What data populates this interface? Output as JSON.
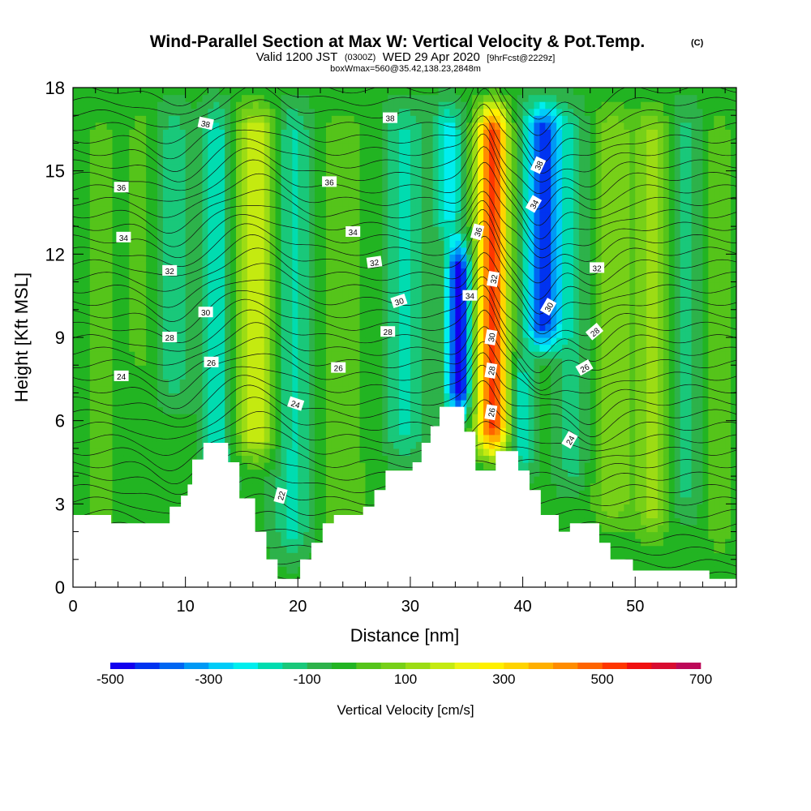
{
  "chart_data": {
    "type": "heatmap",
    "title": {
      "main": "Wind-Parallel Section at Max W: Vertical Velocity & Pot.Temp.",
      "copyright": "(C)",
      "valid_prefix": "Valid 1200 JST",
      "utc": "(0300Z)",
      "valid_date": "WED 29 Apr 2020",
      "forecast": "[9hrFcst@2229z]",
      "box_info": "boxWmax=560@35.42,138.23,2848m"
    },
    "xlabel": "Distance [nm]",
    "ylabel": "Height [Kft MSL]",
    "xlim": [
      0,
      59
    ],
    "ylim": [
      0,
      18
    ],
    "x_ticks": [
      0,
      10,
      20,
      30,
      40,
      50
    ],
    "y_ticks": [
      0,
      3,
      6,
      9,
      12,
      15,
      18
    ],
    "colorbar": {
      "label": "Vertical Velocity [cm/s]",
      "range": [
        -500,
        700
      ],
      "step": 50,
      "tick_labels": [
        -500,
        -300,
        -100,
        100,
        300,
        500,
        700
      ],
      "colors": [
        "#1100ee",
        "#0033f0",
        "#0066f2",
        "#0099f5",
        "#00ccf8",
        "#00eeee",
        "#00dcb0",
        "#19c87a",
        "#2db24a",
        "#22b422",
        "#55c41a",
        "#77d018",
        "#9cdc14",
        "#c4ea10",
        "#eef410",
        "#fff000",
        "#ffd400",
        "#ffb000",
        "#ff8c00",
        "#ff6400",
        "#ff3600",
        "#f01010",
        "#d80c30",
        "#bc0858",
        "#a00a80",
        "#7a0a99"
      ]
    },
    "velocity_field": {
      "background": -40,
      "features": [
        {
          "x": 2.5,
          "w": 1.4,
          "sign": 1,
          "amp": 55,
          "z0": 0.5,
          "z1": 18
        },
        {
          "x": 6.0,
          "w": 1.2,
          "sign": 1,
          "amp": 60,
          "z0": 7,
          "z1": 18
        },
        {
          "x": 9.0,
          "w": 1.3,
          "sign": -1,
          "amp": 90,
          "z0": 6,
          "z1": 18
        },
        {
          "x": 12.8,
          "w": 1.2,
          "sign": -1,
          "amp": 150,
          "z0": 2,
          "z1": 18
        },
        {
          "x": 16.3,
          "w": 1.8,
          "sign": 1,
          "amp": 230,
          "z0": 4,
          "z1": 18
        },
        {
          "x": 19.6,
          "w": 1.6,
          "sign": -1,
          "amp": 130,
          "z0": 0.5,
          "z1": 18
        },
        {
          "x": 24.0,
          "w": 2.8,
          "sign": 1,
          "amp": 60,
          "z0": 0.5,
          "z1": 18
        },
        {
          "x": 29.5,
          "w": 1.8,
          "sign": -1,
          "amp": 120,
          "z0": 4,
          "z1": 18
        },
        {
          "x": 34.3,
          "w": 1.0,
          "sign": -1,
          "amp": 480,
          "z0": 5.6,
          "z1": 13
        },
        {
          "x": 33.4,
          "w": 1.2,
          "sign": -1,
          "amp": 200,
          "z0": 12,
          "z1": 18
        },
        {
          "x": 37.3,
          "w": 1.4,
          "sign": 1,
          "amp": 560,
          "z0": 4.2,
          "z1": 18
        },
        {
          "x": 40.0,
          "w": 1.0,
          "sign": -1,
          "amp": 160,
          "z0": 3.5,
          "z1": 9
        },
        {
          "x": 41.8,
          "w": 1.6,
          "sign": -1,
          "amp": 400,
          "z0": 8,
          "z1": 18
        },
        {
          "x": 44.5,
          "w": 1.4,
          "sign": -1,
          "amp": 90,
          "z0": 3,
          "z1": 18
        },
        {
          "x": 48.0,
          "w": 1.8,
          "sign": 1,
          "amp": 130,
          "z0": 1.5,
          "z1": 18
        },
        {
          "x": 51.5,
          "w": 1.4,
          "sign": 1,
          "amp": 150,
          "z0": 1,
          "z1": 18
        },
        {
          "x": 54.5,
          "w": 1.2,
          "sign": -1,
          "amp": 80,
          "z0": 2,
          "z1": 18
        },
        {
          "x": 57.5,
          "w": 1.3,
          "sign": 1,
          "amp": 60,
          "z0": 0.3,
          "z1": 18
        }
      ]
    },
    "terrain_profile": [
      [
        0,
        2.6
      ],
      [
        3.4,
        2.6
      ],
      [
        3.4,
        2.3
      ],
      [
        8.6,
        2.3
      ],
      [
        8.6,
        2.9
      ],
      [
        9.6,
        2.9
      ],
      [
        9.6,
        3.3
      ],
      [
        10.2,
        3.3
      ],
      [
        10.2,
        3.7
      ],
      [
        10.6,
        3.7
      ],
      [
        10.6,
        4.6
      ],
      [
        11.6,
        4.6
      ],
      [
        11.6,
        5.2
      ],
      [
        13.8,
        5.2
      ],
      [
        13.8,
        4.5
      ],
      [
        14.8,
        4.5
      ],
      [
        14.8,
        3.2
      ],
      [
        16.2,
        3.2
      ],
      [
        16.2,
        2.0
      ],
      [
        17.2,
        2.0
      ],
      [
        17.2,
        1.0
      ],
      [
        18.2,
        1.0
      ],
      [
        18.2,
        0.3
      ],
      [
        20.2,
        0.3
      ],
      [
        20.2,
        1.0
      ],
      [
        21.2,
        1.0
      ],
      [
        21.2,
        1.6
      ],
      [
        22.2,
        1.6
      ],
      [
        22.2,
        2.3
      ],
      [
        23.2,
        2.3
      ],
      [
        23.2,
        2.6
      ],
      [
        25.8,
        2.6
      ],
      [
        25.8,
        2.9
      ],
      [
        26.8,
        2.9
      ],
      [
        26.8,
        3.5
      ],
      [
        27.8,
        3.5
      ],
      [
        27.8,
        4.2
      ],
      [
        30.2,
        4.2
      ],
      [
        30.2,
        4.5
      ],
      [
        31.0,
        4.5
      ],
      [
        31.0,
        5.2
      ],
      [
        31.8,
        5.2
      ],
      [
        31.8,
        5.8
      ],
      [
        32.6,
        5.8
      ],
      [
        32.6,
        6.5
      ],
      [
        34.8,
        6.5
      ],
      [
        34.8,
        5.6
      ],
      [
        35.8,
        5.6
      ],
      [
        35.8,
        4.2
      ],
      [
        37.6,
        4.2
      ],
      [
        37.6,
        4.9
      ],
      [
        39.6,
        4.9
      ],
      [
        39.6,
        4.2
      ],
      [
        40.6,
        4.2
      ],
      [
        40.6,
        3.5
      ],
      [
        41.6,
        3.5
      ],
      [
        41.6,
        2.6
      ],
      [
        43.2,
        2.6
      ],
      [
        43.2,
        2.0
      ],
      [
        44.2,
        2.0
      ],
      [
        44.2,
        2.3
      ],
      [
        46.8,
        2.3
      ],
      [
        46.8,
        1.6
      ],
      [
        47.8,
        1.6
      ],
      [
        47.8,
        1.0
      ],
      [
        49.8,
        1.0
      ],
      [
        49.8,
        0.6
      ],
      [
        56.6,
        0.6
      ],
      [
        56.6,
        0.3
      ],
      [
        59,
        0.3
      ]
    ],
    "potential_temperature": {
      "labels": [
        {
          "text": "38",
          "x": 11.8,
          "y": 16.7,
          "angle": 12
        },
        {
          "text": "38",
          "x": 28.2,
          "y": 16.9,
          "angle": 0
        },
        {
          "text": "36",
          "x": 4.3,
          "y": 14.4,
          "angle": 0
        },
        {
          "text": "36",
          "x": 22.8,
          "y": 14.6,
          "angle": 0
        },
        {
          "text": "34",
          "x": 4.5,
          "y": 12.6,
          "angle": 0
        },
        {
          "text": "34",
          "x": 24.9,
          "y": 12.8,
          "angle": 0
        },
        {
          "text": "32",
          "x": 8.6,
          "y": 11.4,
          "angle": 0
        },
        {
          "text": "32",
          "x": 26.8,
          "y": 11.7,
          "angle": -8
        },
        {
          "text": "30",
          "x": 11.8,
          "y": 9.9,
          "angle": 0
        },
        {
          "text": "30",
          "x": 29.0,
          "y": 10.3,
          "angle": -18
        },
        {
          "text": "28",
          "x": 8.6,
          "y": 9.0,
          "angle": 0
        },
        {
          "text": "28",
          "x": 28.0,
          "y": 9.2,
          "angle": 0
        },
        {
          "text": "26",
          "x": 12.3,
          "y": 8.1,
          "angle": 0
        },
        {
          "text": "26",
          "x": 23.6,
          "y": 7.9,
          "angle": 0
        },
        {
          "text": "24",
          "x": 4.3,
          "y": 7.6,
          "angle": 0
        },
        {
          "text": "24",
          "x": 19.8,
          "y": 6.6,
          "angle": 18
        },
        {
          "text": "22",
          "x": 18.5,
          "y": 3.3,
          "angle": -75
        },
        {
          "text": "38",
          "x": 41.4,
          "y": 15.2,
          "angle": -65
        },
        {
          "text": "36",
          "x": 36.0,
          "y": 12.8,
          "angle": -75
        },
        {
          "text": "34",
          "x": 41.0,
          "y": 13.8,
          "angle": -60
        },
        {
          "text": "34",
          "x": 35.3,
          "y": 10.5,
          "angle": 0
        },
        {
          "text": "32",
          "x": 46.6,
          "y": 11.5,
          "angle": 0
        },
        {
          "text": "32",
          "x": 37.4,
          "y": 11.1,
          "angle": -80
        },
        {
          "text": "30",
          "x": 42.3,
          "y": 10.1,
          "angle": -60
        },
        {
          "text": "30",
          "x": 37.2,
          "y": 9.0,
          "angle": -80
        },
        {
          "text": "28",
          "x": 46.4,
          "y": 9.2,
          "angle": -40
        },
        {
          "text": "28",
          "x": 37.2,
          "y": 7.8,
          "angle": -80
        },
        {
          "text": "26",
          "x": 45.5,
          "y": 7.9,
          "angle": -30
        },
        {
          "text": "26",
          "x": 37.2,
          "y": 6.3,
          "angle": -80
        },
        {
          "text": "24",
          "x": 44.2,
          "y": 5.3,
          "angle": -60
        }
      ]
    },
    "grid": false,
    "legend_position": "bottom"
  }
}
